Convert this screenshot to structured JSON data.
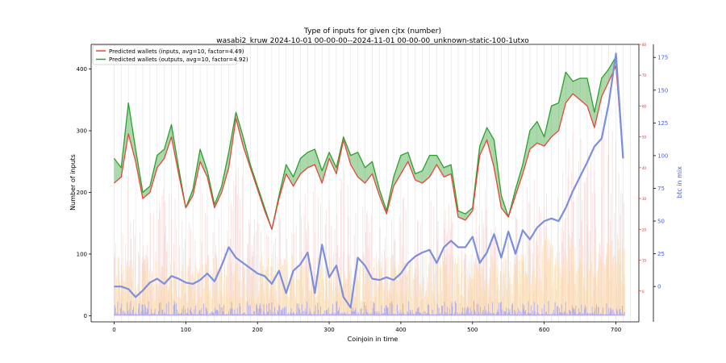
{
  "chart_data": {
    "type": "line",
    "title": "Type of inputs for given cjtx (number)",
    "subtitle": "wasabi2_kruw 2024-10-01 00-00-00--2024-11-01 00-00-00_unknown-static-100-1utxo",
    "xlabel": "Coinjoin in time",
    "ylabel": "Number of inputs",
    "y2label": "btc in mix",
    "xlim": [
      -32,
      732
    ],
    "ylim": [
      -10,
      440
    ],
    "y2lim": [
      -27,
      185
    ],
    "y3lim": [
      -10,
      80
    ],
    "xticks": [
      "0",
      "100",
      "200",
      "300",
      "400",
      "500",
      "600",
      "700"
    ],
    "yticks": [
      "0",
      "100",
      "200",
      "300",
      "400"
    ],
    "y2ticks": [
      "0",
      "25",
      "50",
      "75",
      "100",
      "125",
      "150",
      "175"
    ],
    "y3ticks": [
      "0",
      "10",
      "20",
      "30",
      "40",
      "50",
      "60",
      "70",
      "80"
    ],
    "legend_position": "top-left",
    "grid": "vertical lines only",
    "series": [
      {
        "name": "Predicted wallets (inputs, avg=10, factor=4.49)",
        "color": "#e8453c",
        "fill_color": "#2ca02c",
        "x": [
          0,
          10,
          20,
          30,
          40,
          50,
          60,
          70,
          80,
          90,
          100,
          110,
          120,
          130,
          140,
          150,
          160,
          170,
          180,
          190,
          200,
          210,
          220,
          230,
          240,
          250,
          260,
          270,
          280,
          290,
          300,
          310,
          320,
          330,
          340,
          350,
          360,
          370,
          380,
          390,
          400,
          410,
          420,
          430,
          440,
          450,
          460,
          470,
          480,
          490,
          500,
          510,
          520,
          530,
          540,
          550,
          560,
          570,
          580,
          590,
          600,
          610,
          620,
          630,
          640,
          650,
          660,
          670,
          680,
          690,
          700,
          710
        ],
        "values": [
          215,
          225,
          295,
          250,
          190,
          200,
          240,
          255,
          290,
          230,
          175,
          195,
          250,
          225,
          175,
          200,
          240,
          320,
          275,
          240,
          205,
          170,
          140,
          190,
          230,
          210,
          230,
          240,
          245,
          215,
          255,
          230,
          285,
          245,
          225,
          215,
          230,
          195,
          165,
          210,
          230,
          250,
          220,
          215,
          225,
          245,
          225,
          230,
          160,
          155,
          170,
          260,
          285,
          240,
          175,
          160,
          195,
          230,
          270,
          280,
          275,
          290,
          300,
          345,
          360,
          350,
          340,
          305,
          355,
          380,
          405,
          255
        ]
      },
      {
        "name": "Predicted wallets (outputs, avg=10, factor=4.92)",
        "color": "#2ca02c",
        "x": [
          0,
          10,
          20,
          30,
          40,
          50,
          60,
          70,
          80,
          90,
          100,
          110,
          120,
          130,
          140,
          150,
          160,
          170,
          180,
          190,
          200,
          210,
          220,
          230,
          240,
          250,
          260,
          270,
          280,
          290,
          300,
          310,
          320,
          330,
          340,
          350,
          360,
          370,
          380,
          390,
          400,
          410,
          420,
          430,
          440,
          450,
          460,
          470,
          480,
          490,
          500,
          510,
          520,
          530,
          540,
          550,
          560,
          570,
          580,
          590,
          600,
          610,
          620,
          630,
          640,
          650,
          660,
          670,
          680,
          690,
          700,
          710
        ],
        "values": [
          255,
          240,
          345,
          270,
          200,
          210,
          260,
          270,
          310,
          240,
          175,
          205,
          270,
          235,
          180,
          210,
          265,
          330,
          290,
          245,
          210,
          175,
          140,
          195,
          245,
          225,
          255,
          265,
          270,
          235,
          265,
          240,
          290,
          260,
          265,
          240,
          250,
          205,
          170,
          225,
          260,
          265,
          230,
          235,
          260,
          260,
          240,
          245,
          170,
          165,
          175,
          275,
          305,
          285,
          195,
          160,
          205,
          245,
          300,
          315,
          290,
          340,
          345,
          395,
          380,
          385,
          385,
          330,
          385,
          400,
          420,
          260
        ]
      },
      {
        "name": "",
        "axis": "right",
        "color": "#7b8fdf",
        "x": [
          0,
          10,
          20,
          30,
          40,
          50,
          60,
          70,
          80,
          90,
          100,
          110,
          120,
          130,
          140,
          150,
          160,
          170,
          180,
          190,
          200,
          210,
          220,
          230,
          240,
          250,
          260,
          270,
          280,
          290,
          300,
          310,
          320,
          330,
          340,
          350,
          360,
          370,
          380,
          390,
          400,
          410,
          420,
          430,
          440,
          450,
          460,
          470,
          480,
          490,
          500,
          510,
          520,
          530,
          540,
          550,
          560,
          570,
          580,
          590,
          600,
          610,
          620,
          630,
          640,
          650,
          660,
          670,
          680,
          690,
          700,
          710
        ],
        "values": [
          0,
          0,
          -2,
          -8,
          -3,
          3,
          6,
          2,
          8,
          6,
          3,
          2,
          5,
          10,
          4,
          16,
          30,
          22,
          18,
          14,
          10,
          8,
          2,
          12,
          -5,
          12,
          17,
          26,
          -5,
          32,
          7,
          16,
          -8,
          -16,
          22,
          16,
          6,
          5,
          7,
          5,
          10,
          18,
          23,
          26,
          28,
          18,
          30,
          35,
          30,
          30,
          38,
          18,
          26,
          40,
          22,
          42,
          25,
          43,
          36,
          45,
          50,
          52,
          50,
          60,
          73,
          84,
          95,
          107,
          113,
          140,
          178,
          98
        ]
      }
    ],
    "background_bars": [
      {
        "name": "",
        "color": "#f4b6b6",
        "axis": "right2",
        "description_values": [
          12,
          18,
          55,
          70,
          28,
          52,
          75
        ]
      },
      {
        "name": "",
        "color": "#fad9a0",
        "values_range": [
          0,
          140
        ]
      },
      {
        "name": "",
        "color": "#a6a6f3",
        "values_range": [
          0,
          30
        ]
      }
    ]
  }
}
